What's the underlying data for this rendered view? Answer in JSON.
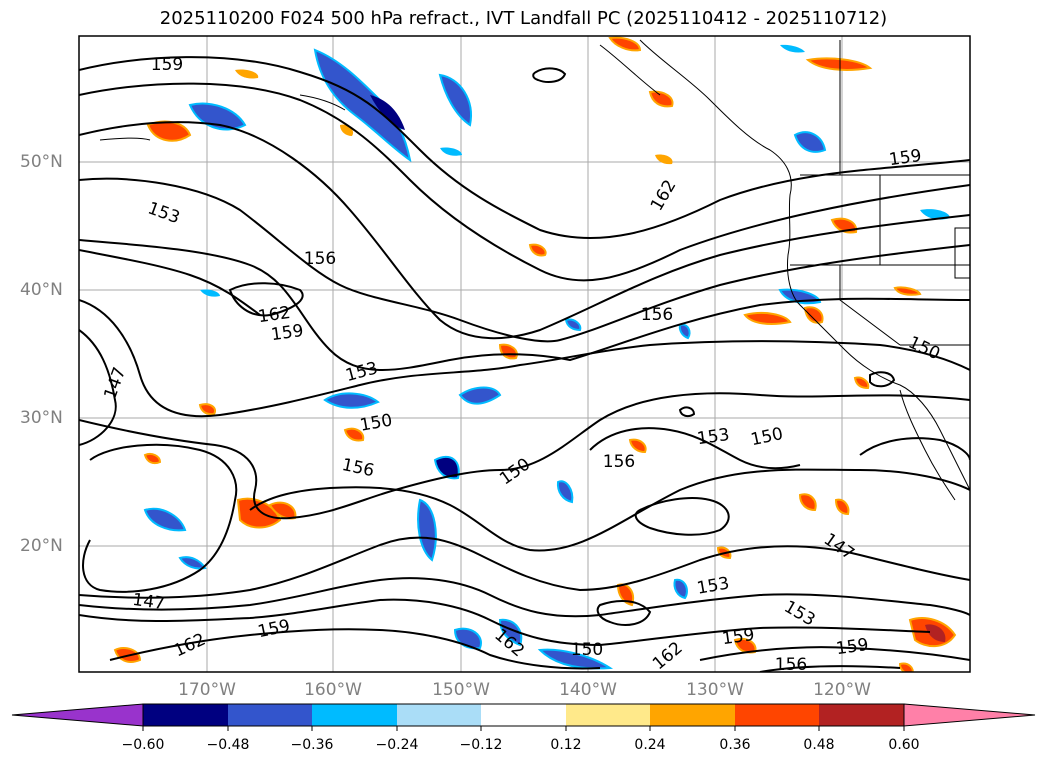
{
  "title": "2025110200 F024 500 hPa refract., IVT Landfall PC (2025110412 - 2025110712)",
  "lat_labels": [
    "50°N",
    "40°N",
    "30°N",
    "20°N"
  ],
  "lon_labels": [
    "170°W",
    "160°W",
    "150°W",
    "140°W",
    "130°W",
    "120°W"
  ],
  "contour_labels": [
    "159",
    "153",
    "156",
    "162",
    "159",
    "147",
    "153",
    "150",
    "156",
    "150",
    "156",
    "153",
    "150",
    "147",
    "153",
    "159",
    "156",
    "150",
    "159",
    "162",
    "147",
    "159",
    "162",
    "150",
    "156",
    "162",
    "159",
    "153",
    "162"
  ],
  "colorbar": {
    "ticks": [
      "−0.60",
      "−0.48",
      "−0.36",
      "−0.24",
      "−0.12",
      "0.12",
      "0.24",
      "0.36",
      "0.48",
      "0.60"
    ],
    "colors": [
      "#9933cc",
      "#000080",
      "#3355cc",
      "#00bbff",
      "#aaddf7",
      "#ffffff",
      "#ffe98a",
      "#ffa500",
      "#ff4500",
      "#b22222",
      "#ff80a8"
    ]
  }
}
